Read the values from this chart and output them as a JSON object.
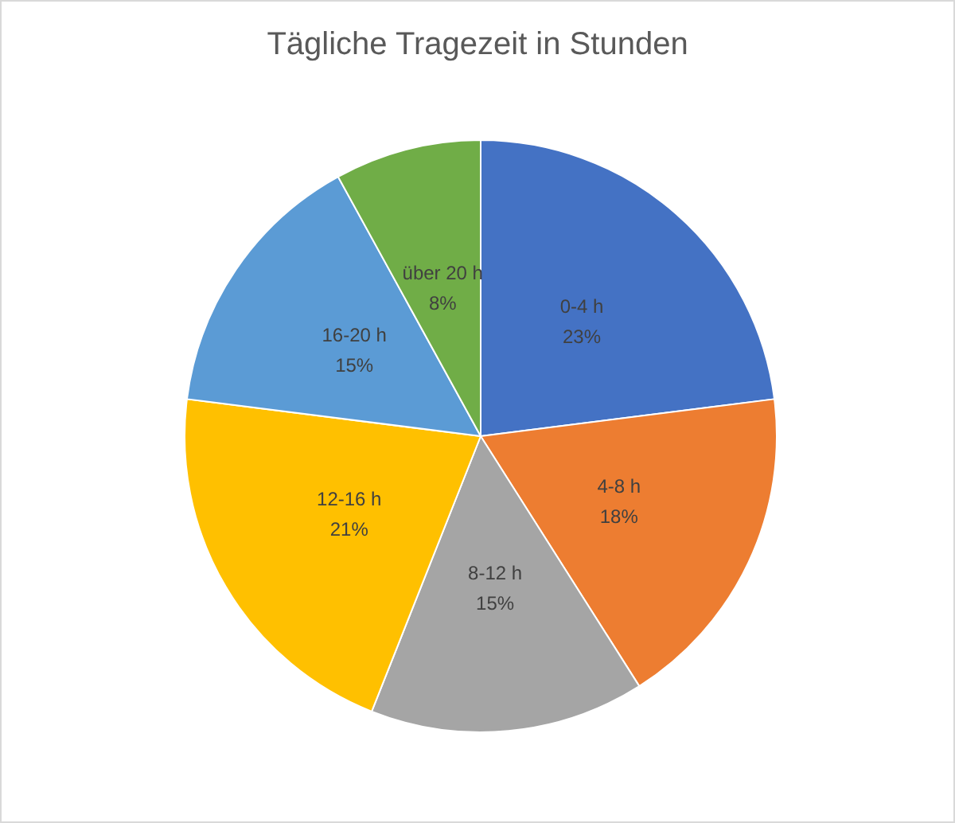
{
  "chart_data": {
    "type": "pie",
    "title": "Tägliche Tragezeit in Stunden",
    "categories": [
      "0-4 h",
      "4-8 h",
      "8-12 h",
      "12-16 h",
      "16-20 h",
      "über 20 h"
    ],
    "values": [
      23,
      18,
      15,
      21,
      15,
      8
    ],
    "value_labels": [
      "23%",
      "18%",
      "15%",
      "21%",
      "15%",
      "8%"
    ],
    "colors": [
      "#4472c4",
      "#ed7d31",
      "#a5a5a5",
      "#ffc000",
      "#5b9bd5",
      "#70ad47"
    ],
    "legend": false
  }
}
